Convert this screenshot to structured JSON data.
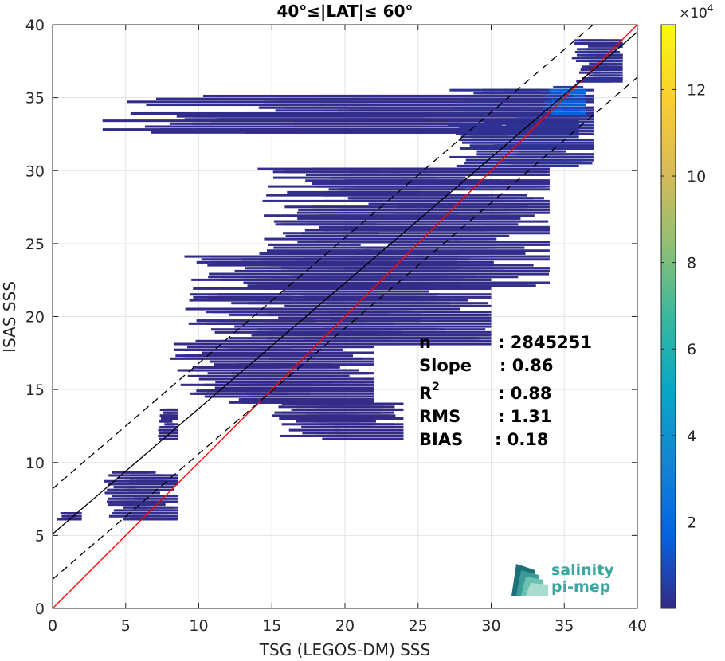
{
  "chart_data": {
    "type": "heatmap",
    "title": "40°≤|LAT|≤ 60°",
    "xlabel": "TSG (LEGOS-DM) SSS",
    "ylabel": "ISAS SSS",
    "xlim": [
      0,
      40
    ],
    "ylim": [
      0,
      40
    ],
    "x_ticks": [
      "0",
      "5",
      "10",
      "15",
      "20",
      "25",
      "30",
      "35",
      "40"
    ],
    "y_ticks": [
      "0",
      "5",
      "10",
      "15",
      "20",
      "25",
      "30",
      "35",
      "40"
    ],
    "grid": true,
    "colorbar": {
      "multiplier_base": "×10",
      "multiplier_exp": "4",
      "range": [
        0,
        13.5
      ],
      "ticks": [
        "2",
        "4",
        "6",
        "8",
        "10",
        "12"
      ],
      "tick_values": [
        2,
        4,
        6,
        8,
        10,
        12
      ],
      "colormap": "parula",
      "stops": [
        "#352a87",
        "#0363e1",
        "#1485d4",
        "#06a7c6",
        "#38b99e",
        "#92bf73",
        "#d9ba56",
        "#fcce2e",
        "#f9fb0e"
      ]
    },
    "lines": [
      {
        "name": "1:1",
        "color": "#ff0000",
        "style": "solid",
        "x": [
          0,
          40
        ],
        "y": [
          0,
          40
        ]
      },
      {
        "name": "fit",
        "color": "#000000",
        "style": "solid",
        "x": [
          0,
          40
        ],
        "y": [
          5.1,
          39.5
        ]
      },
      {
        "name": "fit+",
        "color": "#000000",
        "style": "dashed",
        "x": [
          0,
          40
        ],
        "y": [
          8.2,
          42.6
        ]
      },
      {
        "name": "fit-",
        "color": "#000000",
        "style": "dashed",
        "x": [
          0,
          40
        ],
        "y": [
          2.0,
          36.4
        ]
      }
    ],
    "density_regions": [
      {
        "x": [
          1.5,
          36
        ],
        "y": [
          32.5,
          33.4
        ],
        "level": 0.05
      },
      {
        "x": [
          5,
          37
        ],
        "y": [
          33.4,
          35.2
        ],
        "level": 0.1
      },
      {
        "x": [
          27,
          37
        ],
        "y": [
          30,
          35.5
        ],
        "level": 0.2
      },
      {
        "x": [
          33.5,
          36.5
        ],
        "y": [
          33.8,
          35.8
        ],
        "level": 1.2
      },
      {
        "x": [
          35.5,
          39
        ],
        "y": [
          36,
          39
        ],
        "level": 0.15
      },
      {
        "x": [
          14,
          34
        ],
        "y": [
          22,
          30
        ],
        "level": 0.08
      },
      {
        "x": [
          9,
          30
        ],
        "y": [
          18,
          24
        ],
        "level": 0.05
      },
      {
        "x": [
          8,
          22
        ],
        "y": [
          14,
          18
        ],
        "level": 0.03
      },
      {
        "x": [
          15,
          24
        ],
        "y": [
          11.5,
          14
        ],
        "level": 0.02
      },
      {
        "x": [
          7.2,
          8.6
        ],
        "y": [
          11.5,
          13.5
        ],
        "level": 0.02
      },
      {
        "x": [
          3.5,
          8.6
        ],
        "y": [
          6,
          9.2
        ],
        "level": 0.06
      },
      {
        "x": [
          0.2,
          2
        ],
        "y": [
          6,
          6.6
        ],
        "level": 0.02
      }
    ],
    "annotations": [
      {
        "label": "n",
        "value": ": 2845251"
      },
      {
        "label": "Slope",
        "value": ": 0.86"
      },
      {
        "label": "R",
        "label_sup": "2",
        "value": ": 0.88"
      },
      {
        "label": "RMS",
        "value": ": 1.31"
      },
      {
        "label": "BIAS",
        "value": ": 0.18"
      }
    ]
  },
  "logo": {
    "line1": "salinity",
    "line2": "pi-mep"
  }
}
